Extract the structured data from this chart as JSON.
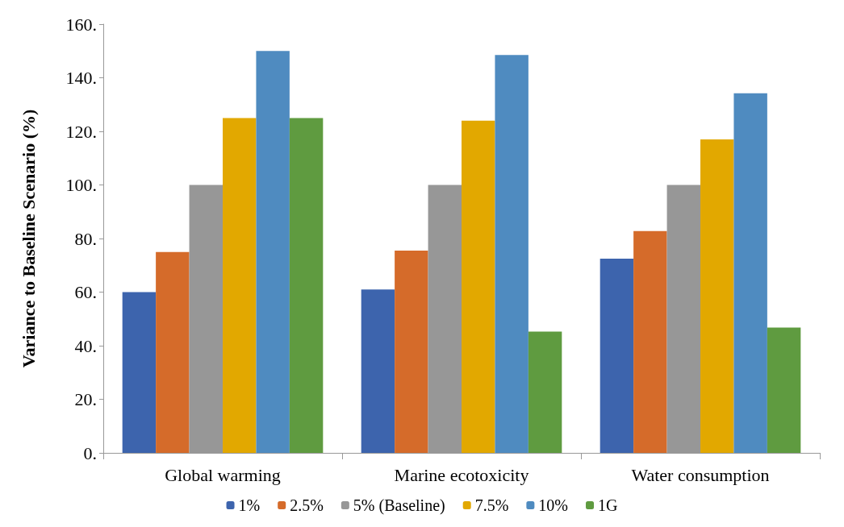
{
  "chart_data": {
    "type": "bar",
    "ylabel": "Variance to Baseline Scenario (%)",
    "categories": [
      "Global warming",
      "Marine ecotoxicity",
      "Water consumption"
    ],
    "series": [
      {
        "name": "1%",
        "color": "#3d64ad",
        "values": [
          60,
          61,
          72.5
        ]
      },
      {
        "name": "2.5%",
        "color": "#d56b2a",
        "values": [
          75,
          75.5,
          82.8
        ]
      },
      {
        "name": "5% (Baseline)",
        "color": "#979797",
        "values": [
          100,
          100,
          100
        ]
      },
      {
        "name": "7.5%",
        "color": "#e2a800",
        "values": [
          125,
          124,
          117
        ]
      },
      {
        "name": "10%",
        "color": "#4f8bc0",
        "values": [
          150,
          148.5,
          134.2
        ]
      },
      {
        "name": "1G",
        "color": "#5f9b40",
        "values": [
          125,
          45.3,
          46.8
        ]
      }
    ],
    "ylim": [
      0,
      160
    ],
    "yticks": [
      {
        "value": 0,
        "label": "0."
      },
      {
        "value": 20,
        "label": "20."
      },
      {
        "value": 40,
        "label": "40."
      },
      {
        "value": 60,
        "label": "60."
      },
      {
        "value": 80,
        "label": "80."
      },
      {
        "value": 100,
        "label": "100."
      },
      {
        "value": 120,
        "label": "120."
      },
      {
        "value": 140,
        "label": "140."
      },
      {
        "value": 160,
        "label": "160."
      }
    ],
    "grid": false,
    "legend": "bottom"
  }
}
